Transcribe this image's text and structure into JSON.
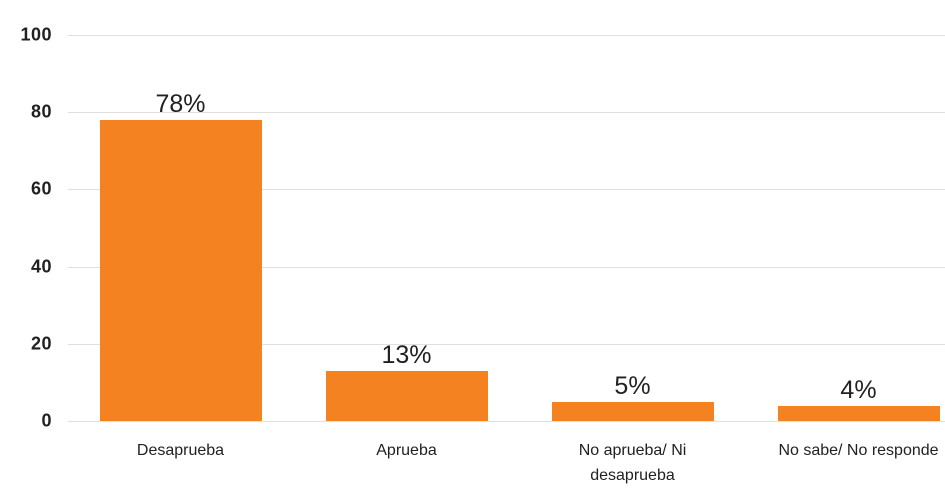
{
  "chart_data": {
    "type": "bar",
    "title": "",
    "xlabel": "",
    "ylabel": "",
    "categories": [
      "Desaprueba",
      "Aprueba",
      "No aprueba/ Ni\ndesaprueba",
      "No sabe/ No responde"
    ],
    "values": [
      78,
      13,
      5,
      4
    ],
    "value_labels": [
      "78%",
      "13%",
      "5%",
      "4%"
    ],
    "ylim": [
      0,
      100
    ],
    "yticks": [
      0,
      20,
      40,
      60,
      80,
      100
    ],
    "ytick_labels": [
      "0",
      "20",
      "40",
      "60",
      "80",
      "100"
    ],
    "grid": true,
    "legend": false,
    "colors": {
      "bar": "#F58220",
      "gridline": "#E0E0E0",
      "text": "#212121",
      "background": "#FFFFFF"
    }
  }
}
